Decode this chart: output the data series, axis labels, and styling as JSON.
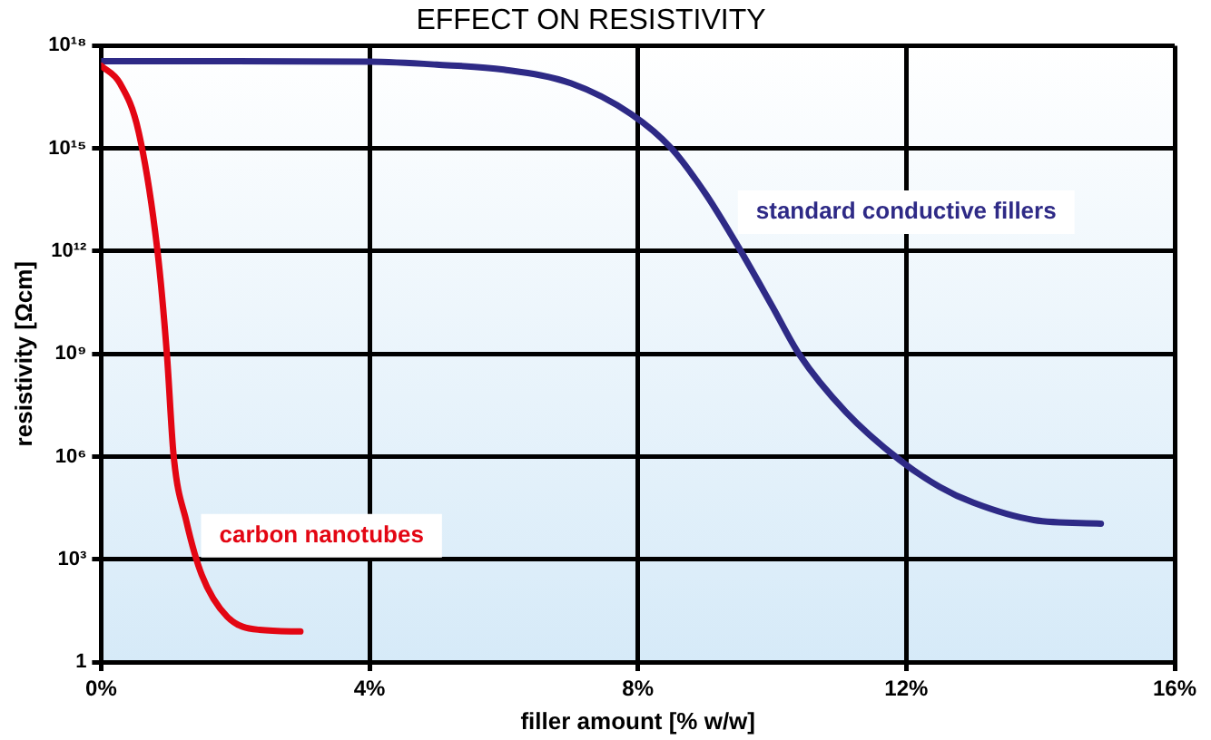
{
  "chart_data": {
    "type": "line",
    "title": "EFFECT ON RESISTIVITY",
    "xlabel": "filler amount [% w/w]",
    "ylabel": "resistivity [Ωcm]",
    "xlim": [
      0,
      16
    ],
    "xticks": [
      {
        "value": 0,
        "label": "0%"
      },
      {
        "value": 4,
        "label": "4%"
      },
      {
        "value": 8,
        "label": "8%"
      },
      {
        "value": 12,
        "label": "12%"
      },
      {
        "value": 16,
        "label": "16%"
      }
    ],
    "ylim": [
      1,
      1e+18
    ],
    "yticks": [
      1,
      {
        "value": 1000,
        "label": "10³"
      },
      {
        "value": 1000000.0,
        "label": "10⁶"
      },
      {
        "value": 1000000000.0,
        "label": "10⁹"
      },
      {
        "value": 1000000000000.0,
        "label": "10¹²"
      },
      {
        "value": 1000000000000000.0,
        "label": "10¹⁵"
      },
      {
        "value": 1e+18,
        "label": "10¹⁸"
      }
    ],
    "log": "y",
    "grid": true,
    "legend": false,
    "marker": "none",
    "line_style": "solid",
    "series": [
      {
        "name": "carbon nanotubes",
        "color": "#e30613",
        "x": [
          0,
          0.28,
          0.56,
          0.84,
          0.98,
          1.08,
          1.27,
          1.5,
          1.88,
          2.36,
          2.97
        ],
        "values": [
          2.6e+17,
          8e+16,
          3000000000000000.0,
          1000000000000.0,
          1000000000.0,
          1100000.0,
          13000.0,
          350,
          21,
          8.7,
          7.8
        ]
      },
      {
        "name": "standard conductive fillers",
        "color": "#2e2a86",
        "x": [
          0,
          2,
          4,
          5,
          6,
          7,
          7.9,
          8.5,
          9,
          9.5,
          10,
          10.4,
          11.1,
          11.9,
          12.5,
          13,
          13.9,
          14.9
        ],
        "values": [
          3.5e+17,
          3.5e+17,
          3.4e+17,
          2.8e+17,
          2e+17,
          8e+16,
          1e+16,
          1000000000000000.0,
          50000000000000.0,
          1300000000000.0,
          25000000000.0,
          1000000000.0,
          20000000.0,
          800000.0,
          130000.0,
          45000.0,
          14000.0,
          11000.0
        ]
      }
    ]
  }
}
